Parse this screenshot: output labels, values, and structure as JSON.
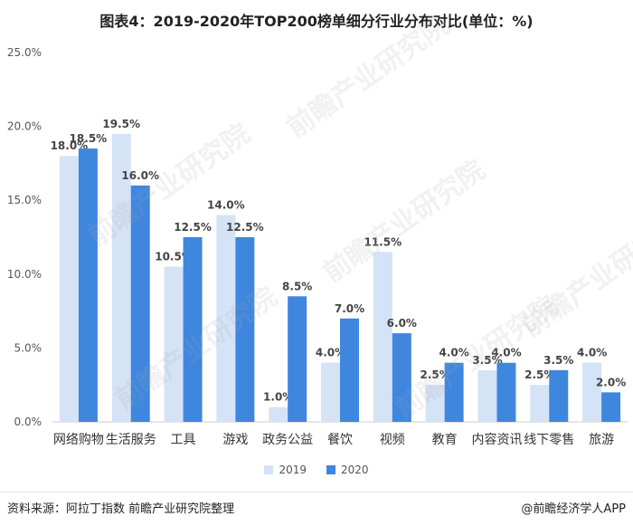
{
  "title": "图表4：2019-2020年TOP200榜单细分行业分布对比(单位：%)",
  "legend": [
    {
      "label": "2019",
      "color": "#d5e3f7"
    },
    {
      "label": "2020",
      "color": "#3f86df"
    }
  ],
  "footer": {
    "source": "资料来源：阿拉丁指数 前瞻产业研究院整理",
    "brand": "@前瞻经济学人APP"
  },
  "watermark": "前瞻产业研究院",
  "chart_data": {
    "type": "bar",
    "title": "图表4：2019-2020年TOP200榜单细分行业分布对比(单位：%)",
    "categories": [
      "网络购物",
      "生活服务",
      "工具",
      "游戏",
      "政务公益",
      "餐饮",
      "视频",
      "教育",
      "内容资讯",
      "线下零售",
      "旅游"
    ],
    "series": [
      {
        "name": "2019",
        "color": "#d5e3f7",
        "values": [
          18.0,
          19.5,
          10.5,
          14.0,
          1.0,
          4.0,
          11.5,
          2.5,
          3.5,
          2.5,
          4.0
        ]
      },
      {
        "name": "2020",
        "color": "#3f86df",
        "values": [
          18.5,
          16.0,
          12.5,
          12.5,
          8.5,
          7.0,
          6.0,
          4.0,
          4.0,
          3.5,
          2.0
        ]
      }
    ],
    "ylim": [
      0,
      25
    ],
    "yticks": [
      "0.0%",
      "5.0%",
      "10.0%",
      "15.0%",
      "20.0%",
      "25.0%"
    ],
    "data_labels": [
      [
        "18.0%",
        "19.5%",
        "10.5%",
        "14.0%",
        "1.0%",
        "4.0%",
        "11.5%",
        "2.5%",
        "3.5%",
        "2.5%",
        "4.0%"
      ],
      [
        "18.5%",
        "16.0%",
        "12.5%",
        "12.5%",
        "8.5%",
        "7.0%",
        "6.0%",
        "4.0%",
        "4.0%",
        "3.5%",
        "2.0%"
      ]
    ],
    "grid": false,
    "legend_position": "bottom-center"
  }
}
